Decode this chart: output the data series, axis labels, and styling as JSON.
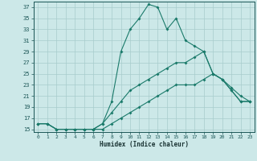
{
  "xlabel": "Humidex (Indice chaleur)",
  "bg_color": "#cce8e8",
  "line_color": "#1a7a6a",
  "grid_color": "#a8cccc",
  "xlim": [
    -0.5,
    23.5
  ],
  "ylim": [
    14.5,
    38.0
  ],
  "xticks": [
    0,
    1,
    2,
    3,
    4,
    5,
    6,
    7,
    8,
    9,
    10,
    11,
    12,
    13,
    14,
    15,
    16,
    17,
    18,
    19,
    20,
    21,
    22,
    23
  ],
  "yticks": [
    15,
    17,
    19,
    21,
    23,
    25,
    27,
    29,
    31,
    33,
    35,
    37
  ],
  "line1_x": [
    0,
    1,
    2,
    3,
    4,
    5,
    6,
    7,
    8,
    9,
    10,
    11,
    12,
    13,
    14,
    15,
    16,
    17,
    18,
    19,
    20,
    21,
    22,
    23
  ],
  "line1_y": [
    16,
    16,
    15,
    15,
    15,
    15,
    15,
    16,
    20,
    29,
    33,
    35,
    37.5,
    37,
    33,
    35,
    31,
    30,
    29,
    25,
    24,
    22,
    20,
    20
  ],
  "line2_x": [
    0,
    1,
    2,
    3,
    4,
    5,
    6,
    7,
    8,
    9,
    10,
    11,
    12,
    13,
    14,
    15,
    16,
    17,
    18,
    19,
    20,
    21,
    22,
    23
  ],
  "line2_y": [
    16,
    16,
    15,
    15,
    15,
    15,
    15,
    16,
    18,
    20,
    22,
    23,
    24,
    25,
    26,
    27,
    27,
    28,
    29,
    25,
    24,
    22.5,
    21,
    20
  ],
  "line3_x": [
    0,
    1,
    2,
    3,
    4,
    5,
    6,
    7,
    8,
    9,
    10,
    11,
    12,
    13,
    14,
    15,
    16,
    17,
    18,
    19,
    20,
    21,
    22,
    23
  ],
  "line3_y": [
    16,
    16,
    15,
    15,
    15,
    15,
    15,
    15,
    16,
    17,
    18,
    19,
    20,
    21,
    22,
    23,
    23,
    23,
    24,
    25,
    24,
    22,
    20,
    20
  ]
}
